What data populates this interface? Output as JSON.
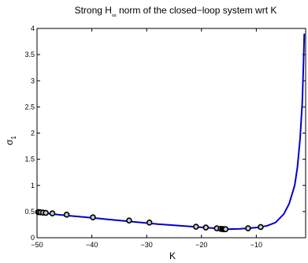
{
  "chart_data": {
    "type": "line",
    "title": {
      "main": "Strong H",
      "subscript": "∞",
      "rest": " norm of the closed−loop system wrt K"
    },
    "xlabel": "K",
    "ylabel": {
      "main": "σ",
      "subscript": "1"
    },
    "xlim": [
      -50,
      -1
    ],
    "ylim": [
      0,
      4
    ],
    "xticks": [
      -50,
      -40,
      -30,
      -20,
      -10
    ],
    "xtick_labels": [
      "−50",
      "−40",
      "−30",
      "−20",
      "−10"
    ],
    "yticks": [
      0,
      0.5,
      1,
      1.5,
      2,
      2.5,
      3,
      3.5,
      4
    ],
    "ytick_labels": [
      "0",
      "0.5",
      "1",
      "1.5",
      "2",
      "2.5",
      "3",
      "3.5",
      "4"
    ],
    "grid": false,
    "series": [
      {
        "kind": "line",
        "color": "#0000cc",
        "x": [
          -50,
          -48,
          -46,
          -44,
          -42,
          -40,
          -38,
          -36,
          -34,
          -32,
          -30,
          -28,
          -26,
          -24,
          -22,
          -20,
          -18,
          -16.5,
          -15,
          -13,
          -11,
          -9.5,
          -8,
          -6.5,
          -5,
          -4,
          -3,
          -2.5,
          -2,
          -1.6,
          -1.4,
          -1.25
        ],
        "y": [
          0.49,
          0.465,
          0.44,
          0.42,
          0.4,
          0.38,
          0.36,
          0.34,
          0.32,
          0.3,
          0.28,
          0.26,
          0.245,
          0.23,
          0.215,
          0.2,
          0.185,
          0.17,
          0.165,
          0.17,
          0.185,
          0.2,
          0.23,
          0.29,
          0.45,
          0.65,
          1.0,
          1.35,
          1.9,
          2.6,
          3.3,
          3.9
        ]
      },
      {
        "kind": "markers",
        "x": [
          -49.8,
          -49.6,
          -49.3,
          -48.9,
          -48.4,
          -47.2,
          -44.6,
          -39.8,
          -33.2,
          -29.5,
          -21,
          -19.2,
          -17.2,
          -16.5,
          -16.2,
          -16,
          -15.8,
          -15.6,
          -11.5,
          -9.2
        ],
        "y": [
          0.49,
          0.49,
          0.485,
          0.48,
          0.475,
          0.465,
          0.44,
          0.39,
          0.33,
          0.29,
          0.21,
          0.195,
          0.18,
          0.17,
          0.165,
          0.165,
          0.163,
          0.163,
          0.18,
          0.205
        ]
      }
    ]
  }
}
